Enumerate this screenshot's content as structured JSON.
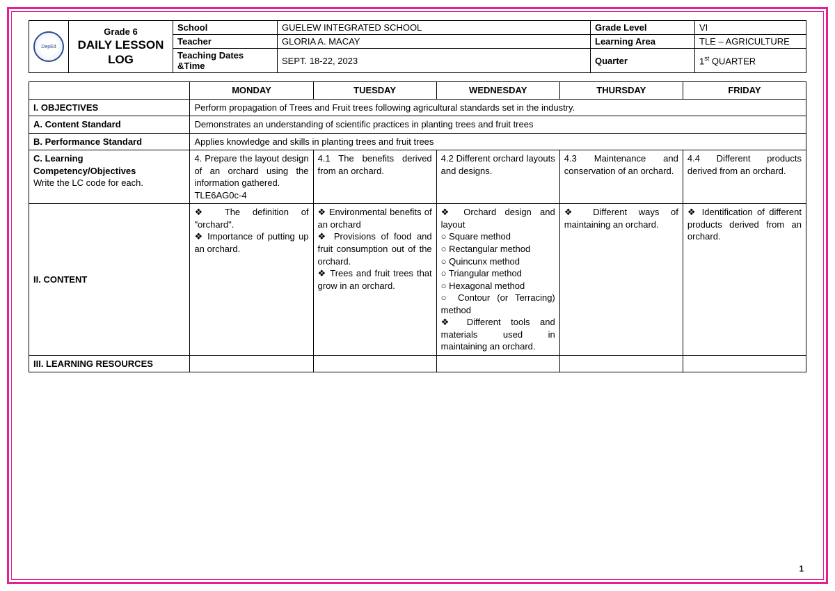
{
  "header": {
    "grade_line": "Grade 6",
    "title": "DAILY LESSON LOG",
    "rows": [
      {
        "label": "School",
        "value": "GUELEW INTEGRATED SCHOOL",
        "label2": "Grade Level",
        "value2": "VI"
      },
      {
        "label": "Teacher",
        "value": "GLORIA A. MACAY",
        "label2": "Learning Area",
        "value2": "TLE – AGRICULTURE"
      },
      {
        "label": "Teaching Dates &Time",
        "value": "SEPT. 18-22, 2023",
        "label2": "Quarter",
        "value2_html": "1<sup>st</sup> QUARTER"
      }
    ]
  },
  "days": [
    "MONDAY",
    "TUESDAY",
    "WEDNESDAY",
    "THURSDAY",
    "FRIDAY"
  ],
  "sections": {
    "objectives_label": "I. OBJECTIVES",
    "objectives_text": "Perform propagation of Trees and Fruit trees following agricultural standards set in the industry.",
    "content_std_label": "A. Content Standard",
    "content_std_text": "Demonstrates an understanding of scientific practices in planting trees and fruit trees",
    "perf_std_label": "B. Performance Standard",
    "perf_std_text": "Applies knowledge and skills in planting trees and fruit trees",
    "lc_label_html": "<b>C. Learning Competency/Objectives</b><br><span class='sub'>Write the LC code for each.</span>",
    "lc": {
      "mon": "4. Prepare the layout design of an orchard using the information gathered.\nTLE6AG0c-4",
      "tue": "4.1 The benefits derived from an orchard.",
      "wed": "4.2 Different orchard layouts and designs.",
      "thu": "4.3 Maintenance and conservation of an orchard.",
      "fri": "4.4 Different products derived from an orchard."
    },
    "content_label": "II. CONTENT",
    "content": {
      "mon": [
        {
          "t": "b",
          "v": "The definition of \"orchard\"."
        },
        {
          "t": "b",
          "v": "Importance of putting up an orchard."
        }
      ],
      "tue": [
        {
          "t": "b",
          "v": "Environmental benefits of an orchard"
        },
        {
          "t": "b",
          "v": "Provisions of food and fruit consumption out of the orchard."
        },
        {
          "t": "b",
          "v": "Trees and fruit trees that grow in an orchard."
        }
      ],
      "wed": [
        {
          "t": "b",
          "v": "Orchard design and layout"
        },
        {
          "t": "c",
          "v": "Square method"
        },
        {
          "t": "c",
          "v": "Rectangular method"
        },
        {
          "t": "c",
          "v": "Quincunx method"
        },
        {
          "t": "c",
          "v": "Triangular method"
        },
        {
          "t": "c",
          "v": "Hexagonal method"
        },
        {
          "t": "c",
          "v": "Contour (or Terracing) method"
        },
        {
          "t": "b",
          "v": "Different tools and materials used in maintaining an orchard."
        }
      ],
      "thu": [
        {
          "t": "b",
          "v": "Different ways of maintaining an orchard."
        }
      ],
      "fri": [
        {
          "t": "b",
          "v": "Identification of different products derived from an orchard."
        }
      ]
    },
    "resources_label": "III. LEARNING RESOURCES"
  },
  "page_number": "1"
}
